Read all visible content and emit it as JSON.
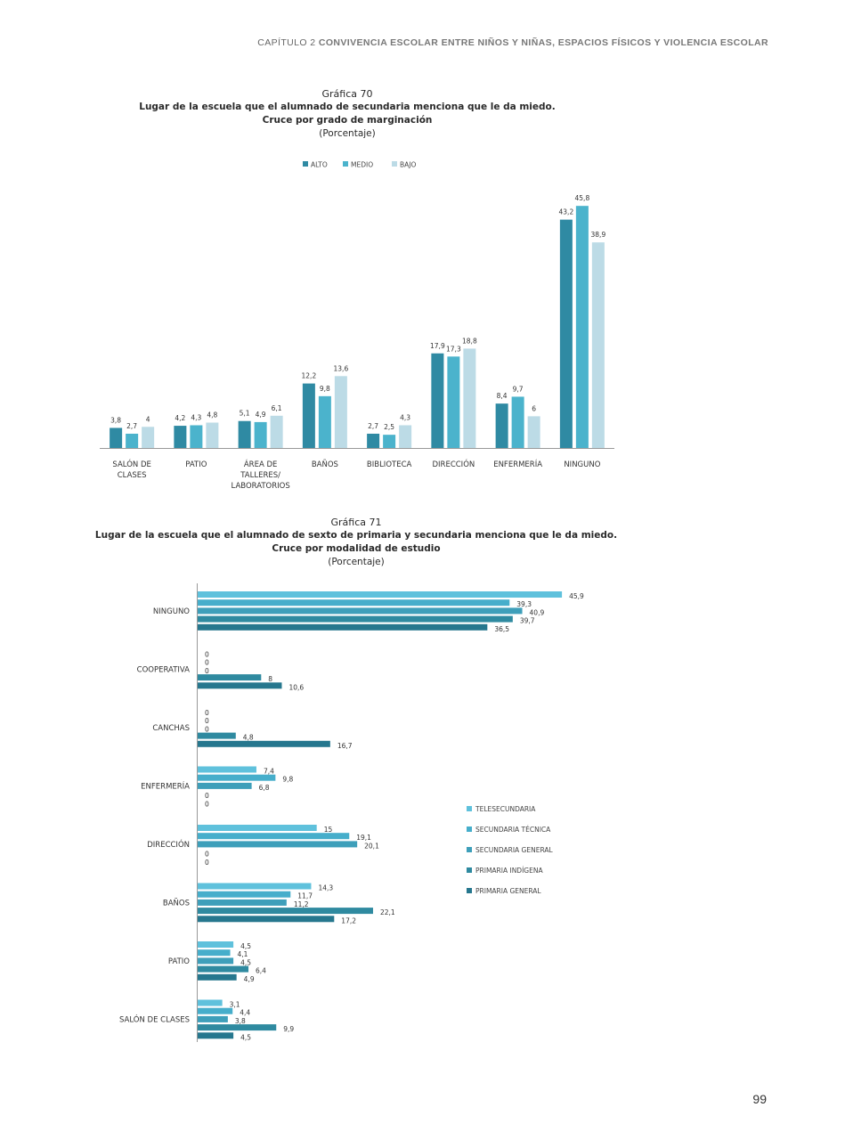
{
  "header": {
    "chapter": "CAPÍTULO 2",
    "topic": "CONVIVENCIA ESCOLAR ENTRE NIÑOS Y NIÑAS, ESPACIOS FÍSICOS Y VIOLENCIA ESCOLAR"
  },
  "page_number": "99",
  "colors": {
    "alto": "#2f8aa3",
    "medio": "#4bb3cc",
    "bajo": "#bcdbe6",
    "telesecundaria": "#5fc1dc",
    "secundaria_tecnica": "#46aecb",
    "secundaria_general": "#3e9fba",
    "primaria_indigena": "#2f8aa0",
    "primaria_general": "#26778e"
  },
  "chart_data": [
    {
      "type": "bar",
      "number": "Gráfica 70",
      "title": "Lugar de la escuela que el alumnado de secundaria menciona que le da miedo.",
      "subtitle": "Cruce por grado de marginación",
      "unit": "(Porcentaje)",
      "legend_position": "top-center",
      "categories": [
        "SALÓN DE CLASES",
        "PATIO",
        "ÁREA DE TALLERES/ LABORATORIOS",
        "BAÑOS",
        "BIBLIOTECA",
        "DIRECCIÓN",
        "ENFERMERÍA",
        "NINGUNO"
      ],
      "category_lines": [
        [
          "SALÓN DE",
          "CLASES"
        ],
        [
          "PATIO"
        ],
        [
          "ÁREA DE",
          "TALLERES/",
          "LABORATORIOS"
        ],
        [
          "BAÑOS"
        ],
        [
          "BIBLIOTECA"
        ],
        [
          "DIRECCIÓN"
        ],
        [
          "ENFERMERÍA"
        ],
        [
          "NINGUNO"
        ]
      ],
      "series": [
        {
          "name": "ALTO",
          "color_key": "alto",
          "values": [
            3.8,
            4.2,
            5.1,
            12.2,
            2.7,
            17.9,
            8.4,
            43.2
          ],
          "labels": [
            "3,8",
            "4,2",
            "5,1",
            "12,2",
            "2,7",
            "17,9",
            "8,4",
            "43,2"
          ]
        },
        {
          "name": "MEDIO",
          "color_key": "medio",
          "values": [
            2.7,
            4.3,
            4.9,
            9.8,
            2.5,
            17.3,
            9.7,
            45.8
          ],
          "labels": [
            "2,7",
            "4,3",
            "4,9",
            "9,8",
            "2,5",
            "17,3",
            "9,7",
            "45,8"
          ]
        },
        {
          "name": "BAJO",
          "color_key": "bajo",
          "values": [
            4,
            4.8,
            6.1,
            13.6,
            4.3,
            18.8,
            6,
            38.9
          ],
          "labels": [
            "4",
            "4,8",
            "6,1",
            "13,6",
            "4,3",
            "18,8",
            "6",
            "38,9"
          ]
        }
      ],
      "ylim": [
        0,
        46
      ]
    },
    {
      "type": "bar",
      "orientation": "horizontal",
      "number": "Gráfica 71",
      "title": "Lugar de la escuela que el alumnado  de sexto de primaria y secundaria menciona que le da miedo.",
      "subtitle": "Cruce por modalidad de estudio",
      "unit": "(Porcentaje)",
      "legend_position": "right",
      "categories": [
        "NINGUNO",
        "COOPERATIVA",
        "CANCHAS",
        "ENFERMERÍA",
        "DIRECCIÓN",
        "BAÑOS",
        "PATIO",
        "SALÓN DE CLASES"
      ],
      "series": [
        {
          "name": "TELESECUNDARIA",
          "color_key": "telesecundaria",
          "values": [
            45.9,
            0,
            0,
            7.4,
            15,
            14.3,
            4.5,
            3.1
          ],
          "labels": [
            "45,9",
            "0",
            "0",
            "7,4",
            "15",
            "14,3",
            "4,5",
            "3,1"
          ]
        },
        {
          "name": "SECUNDARIA TÉCNICA",
          "color_key": "secundaria_tecnica",
          "values": [
            39.3,
            0,
            0,
            9.8,
            19.1,
            11.7,
            4.1,
            4.4
          ],
          "labels": [
            "39,3",
            "0",
            "0",
            "9,8",
            "19,1",
            "11,7",
            "4,1",
            "4,4"
          ]
        },
        {
          "name": "SECUNDARIA GENERAL",
          "color_key": "secundaria_general",
          "values": [
            40.9,
            0,
            0,
            6.8,
            20.1,
            11.2,
            4.5,
            3.8
          ],
          "labels": [
            "40,9",
            "0",
            "0",
            "6,8",
            "20,1",
            "11,2",
            "4,5",
            "3,8"
          ]
        },
        {
          "name": "PRIMARIA INDÍGENA",
          "color_key": "primaria_indigena",
          "values": [
            39.7,
            8,
            4.8,
            0,
            0,
            22.1,
            6.4,
            9.9
          ],
          "labels": [
            "39,7",
            "8",
            "4,8",
            "0",
            "0",
            "22,1",
            "6,4",
            "9,9"
          ]
        },
        {
          "name": "PRIMARIA GENERAL",
          "color_key": "primaria_general",
          "values": [
            36.5,
            10.6,
            16.7,
            0,
            0,
            17.2,
            4.9,
            4.5
          ],
          "labels": [
            "36,5",
            "10,6",
            "16,7",
            "0",
            "0",
            "17,2",
            "4,9",
            "4,5"
          ]
        }
      ],
      "xlim": [
        0,
        46
      ]
    }
  ]
}
